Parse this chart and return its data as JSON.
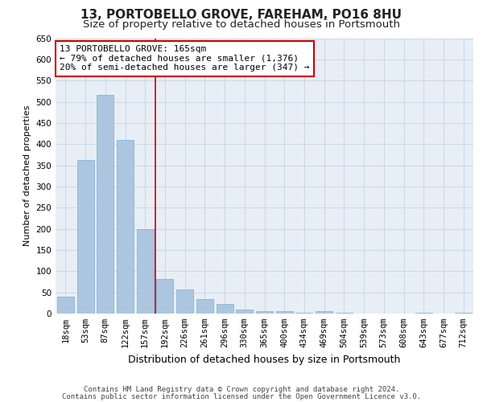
{
  "title": "13, PORTOBELLO GROVE, FAREHAM, PO16 8HU",
  "subtitle": "Size of property relative to detached houses in Portsmouth",
  "xlabel": "Distribution of detached houses by size in Portsmouth",
  "ylabel": "Number of detached properties",
  "categories": [
    "18sqm",
    "53sqm",
    "87sqm",
    "122sqm",
    "157sqm",
    "192sqm",
    "226sqm",
    "261sqm",
    "296sqm",
    "330sqm",
    "365sqm",
    "400sqm",
    "434sqm",
    "469sqm",
    "504sqm",
    "539sqm",
    "573sqm",
    "608sqm",
    "643sqm",
    "677sqm",
    "712sqm"
  ],
  "values": [
    40,
    363,
    517,
    410,
    200,
    82,
    57,
    35,
    22,
    9,
    5,
    5,
    1,
    5,
    1,
    0,
    0,
    0,
    2,
    0,
    2
  ],
  "bar_color": "#adc6e0",
  "bar_edge_color": "#7aafd4",
  "grid_color": "#c8d8ea",
  "background_color": "#e8eef5",
  "annotation_box_text": "13 PORTOBELLO GROVE: 165sqm\n← 79% of detached houses are smaller (1,376)\n20% of semi-detached houses are larger (347) →",
  "annotation_box_color": "#ffffff",
  "annotation_box_edge_color": "#cc0000",
  "red_line_x": 4.5,
  "ylim": [
    0,
    650
  ],
  "yticks": [
    0,
    50,
    100,
    150,
    200,
    250,
    300,
    350,
    400,
    450,
    500,
    550,
    600,
    650
  ],
  "footer_line1": "Contains HM Land Registry data © Crown copyright and database right 2024.",
  "footer_line2": "Contains public sector information licensed under the Open Government Licence v3.0.",
  "title_fontsize": 11,
  "subtitle_fontsize": 9.5,
  "xlabel_fontsize": 9,
  "ylabel_fontsize": 8,
  "tick_fontsize": 7.5,
  "annotation_fontsize": 8,
  "footer_fontsize": 6.5
}
